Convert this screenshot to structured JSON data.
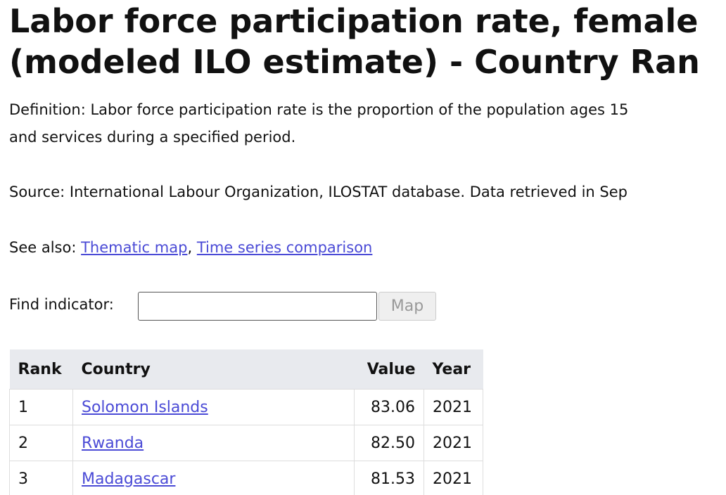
{
  "header": {
    "title_lines": [
      "Labor force participation rate, female",
      "(modeled ILO estimate) - Country Ran"
    ]
  },
  "definition_lines": [
    "Definition: Labor force participation rate is the proportion of the population ages 15",
    "and services during a specified period."
  ],
  "source": "Source: International Labour Organization, ILOSTAT database. Data retrieved in Sep",
  "see_also": {
    "label": "See also:",
    "links": [
      "Thematic map",
      "Time series comparison"
    ],
    "separator": ","
  },
  "search": {
    "label": "Find indicator:",
    "button": "Map"
  },
  "table": {
    "columns": [
      "Rank",
      "Country",
      "Value",
      "Year"
    ],
    "rows": [
      [
        "1",
        "Solomon Islands",
        "83.06",
        "2021"
      ],
      [
        "2",
        "Rwanda",
        "82.50",
        "2021"
      ],
      [
        "3",
        "Madagascar",
        "81.53",
        "2021"
      ]
    ]
  }
}
